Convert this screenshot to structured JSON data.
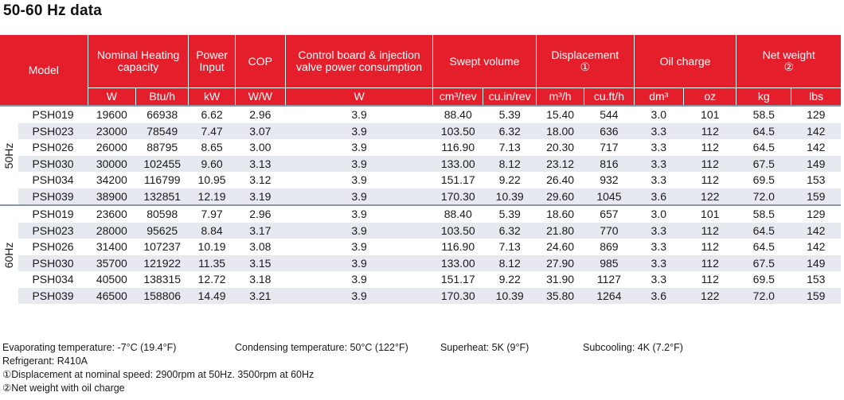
{
  "title": "50-60 Hz data",
  "headers": {
    "model": "Model",
    "heating_capacity": "Nominal Heating capacity",
    "power_input": "Power Input",
    "cop": "COP",
    "control_board": "Control board & injection valve power consumption",
    "swept_volume": "Swept volume",
    "displacement": "Displacement",
    "displacement_mark": "①",
    "oil_charge": "Oil charge",
    "net_weight": "Net weight",
    "net_weight_mark": "②"
  },
  "units": [
    "W",
    "Btu/h",
    "kW",
    "W/W",
    "W",
    "cm³/rev",
    "cu.in/rev",
    "m³/h",
    "cu.ft/h",
    "dm³",
    "oz",
    "kg",
    "lbs"
  ],
  "groups": [
    {
      "label": "50Hz",
      "rows": [
        [
          "PSH019",
          "19600",
          "66938",
          "6.62",
          "2.96",
          "3.9",
          "88.40",
          "5.39",
          "15.40",
          "544",
          "3.0",
          "101",
          "58.5",
          "129"
        ],
        [
          "PSH023",
          "23000",
          "78549",
          "7.47",
          "3.07",
          "3.9",
          "103.50",
          "6.32",
          "18.00",
          "636",
          "3.3",
          "112",
          "64.5",
          "142"
        ],
        [
          "PSH026",
          "26000",
          "88795",
          "8.65",
          "3.00",
          "3.9",
          "116.90",
          "7.13",
          "20.30",
          "717",
          "3.3",
          "112",
          "64.5",
          "142"
        ],
        [
          "PSH030",
          "30000",
          "102455",
          "9.60",
          "3.13",
          "3.9",
          "133.00",
          "8.12",
          "23.12",
          "816",
          "3.3",
          "112",
          "67.5",
          "149"
        ],
        [
          "PSH034",
          "34200",
          "116799",
          "10.95",
          "3.12",
          "3.9",
          "151.17",
          "9.22",
          "26.40",
          "932",
          "3.3",
          "112",
          "69.5",
          "153"
        ],
        [
          "PSH039",
          "38900",
          "132851",
          "12.19",
          "3.19",
          "3.9",
          "170.30",
          "10.39",
          "29.60",
          "1045",
          "3.6",
          "122",
          "72.0",
          "159"
        ]
      ]
    },
    {
      "label": "60Hz",
      "rows": [
        [
          "PSH019",
          "23600",
          "80598",
          "7.97",
          "2.96",
          "3.9",
          "88.40",
          "5.39",
          "18.60",
          "657",
          "3.0",
          "101",
          "58.5",
          "129"
        ],
        [
          "PSH023",
          "28000",
          "95625",
          "8.84",
          "3.17",
          "3.9",
          "103.50",
          "6.32",
          "21.80",
          "770",
          "3.3",
          "112",
          "64.5",
          "142"
        ],
        [
          "PSH026",
          "31400",
          "107237",
          "10.19",
          "3.08",
          "3.9",
          "116.90",
          "7.13",
          "24.60",
          "869",
          "3.3",
          "112",
          "64.5",
          "142"
        ],
        [
          "PSH030",
          "35700",
          "121922",
          "11.35",
          "3.15",
          "3.9",
          "133.00",
          "8.12",
          "27.90",
          "985",
          "3.3",
          "112",
          "67.5",
          "149"
        ],
        [
          "PSH034",
          "40500",
          "138315",
          "12.72",
          "3.18",
          "3.9",
          "151.17",
          "9.22",
          "31.90",
          "1127",
          "3.3",
          "112",
          "69.5",
          "153"
        ],
        [
          "PSH039",
          "46500",
          "158806",
          "14.49",
          "3.21",
          "3.9",
          "170.30",
          "10.39",
          "35.80",
          "1264",
          "3.6",
          "122",
          "72.0",
          "159"
        ]
      ]
    }
  ],
  "notes": {
    "evaporating": "Evaporating temperature: -7°C (19.4°F)",
    "condensing": "Condensing temperature: 50°C (122°F)",
    "superheat": "Superheat: 5K (9°F)",
    "subcooling": "Subcooling: 4K (7.2°F)",
    "refrigerant": "Refrigerant: R410A",
    "footnote1": "①Displacement at nominal speed: 2900rpm at 50Hz. 3500rpm at 60Hz",
    "footnote2": "②Net weight with oil charge"
  },
  "colors": {
    "accent": "#e41e2b",
    "row_alt": "#e6e9f0",
    "group_rule": "#8a96ad"
  }
}
